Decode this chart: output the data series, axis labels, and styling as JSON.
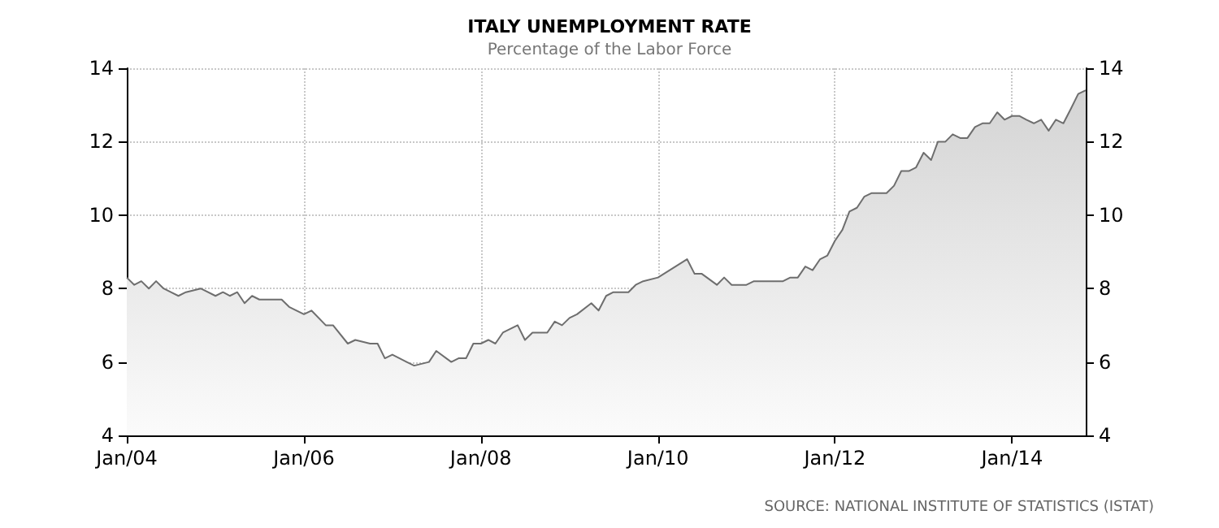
{
  "chart_data": {
    "type": "area",
    "title": "ITALY UNEMPLOYMENT RATE",
    "subtitle": "Percentage of the Labor Force",
    "annotations": [
      "SOURCE: NATIONAL INSTITUTE OF STATISTICS (ISTAT)"
    ],
    "x": [
      "2004-01",
      "2004-02",
      "2004-03",
      "2004-04",
      "2004-05",
      "2004-06",
      "2004-07",
      "2004-08",
      "2004-09",
      "2004-11",
      "2005-01",
      "2005-02",
      "2005-03",
      "2005-04",
      "2005-05",
      "2005-06",
      "2005-07",
      "2005-10",
      "2005-11",
      "2006-01",
      "2006-02",
      "2006-04",
      "2006-05",
      "2006-07",
      "2006-08",
      "2006-10",
      "2006-11",
      "2006-12",
      "2007-01",
      "2007-03",
      "2007-04",
      "2007-06",
      "2007-07",
      "2007-09",
      "2007-10",
      "2007-11",
      "2007-12",
      "2008-01",
      "2008-02",
      "2008-03",
      "2008-04",
      "2008-06",
      "2008-07",
      "2008-08",
      "2008-10",
      "2008-11",
      "2008-12",
      "2009-01",
      "2009-02",
      "2009-04",
      "2009-05",
      "2009-06",
      "2009-07",
      "2009-09",
      "2009-10",
      "2009-11",
      "2010-01",
      "2010-05",
      "2010-06",
      "2010-07",
      "2010-09",
      "2010-10",
      "2010-11",
      "2011-01",
      "2011-02",
      "2011-06",
      "2011-07",
      "2011-08",
      "2011-09",
      "2011-10",
      "2011-11",
      "2011-12",
      "2012-01",
      "2012-02",
      "2012-03",
      "2012-04",
      "2012-05",
      "2012-06",
      "2012-08",
      "2012-09",
      "2012-10",
      "2012-11",
      "2012-12",
      "2013-01",
      "2013-02",
      "2013-03",
      "2013-04",
      "2013-05",
      "2013-06",
      "2013-07",
      "2013-08",
      "2013-09",
      "2013-10",
      "2013-11",
      "2013-12",
      "2014-01",
      "2014-02",
      "2014-03",
      "2014-04",
      "2014-05",
      "2014-06",
      "2014-07",
      "2014-08",
      "2014-09",
      "2014-10",
      "2014-11"
    ],
    "series": [
      {
        "color": "#6e6e6e",
        "values": [
          8.3,
          8.1,
          8.2,
          8.0,
          8.2,
          8.0,
          7.9,
          7.8,
          7.9,
          8.0,
          7.8,
          7.9,
          7.8,
          7.9,
          7.6,
          7.8,
          7.7,
          7.7,
          7.5,
          7.3,
          7.4,
          7.0,
          7.0,
          6.5,
          6.6,
          6.5,
          6.5,
          6.1,
          6.2,
          6.0,
          5.9,
          6.0,
          6.3,
          6.0,
          6.1,
          6.1,
          6.5,
          6.5,
          6.6,
          6.5,
          6.8,
          7.0,
          6.6,
          6.8,
          6.8,
          7.1,
          7.0,
          7.2,
          7.3,
          7.6,
          7.4,
          7.8,
          7.9,
          7.9,
          8.1,
          8.2,
          8.3,
          8.8,
          8.4,
          8.4,
          8.1,
          8.3,
          8.1,
          8.1,
          8.2,
          8.2,
          8.3,
          8.3,
          8.6,
          8.5,
          8.8,
          8.9,
          9.3,
          9.6,
          10.1,
          10.2,
          10.5,
          10.6,
          10.6,
          10.8,
          11.2,
          11.2,
          11.3,
          11.7,
          11.5,
          12.0,
          12.0,
          12.2,
          12.1,
          12.1,
          12.4,
          12.5,
          12.5,
          12.8,
          12.6,
          12.7,
          12.7,
          12.6,
          12.5,
          12.6,
          12.3,
          12.6,
          12.5,
          12.9,
          13.3,
          13.4
        ]
      }
    ],
    "xlim": [
      "2004-01",
      "2014-11"
    ],
    "xticks": [
      {
        "value": "2004-01",
        "label": "Jan/04"
      },
      {
        "value": "2006-01",
        "label": "Jan/06"
      },
      {
        "value": "2008-01",
        "label": "Jan/08"
      },
      {
        "value": "2010-01",
        "label": "Jan/10"
      },
      {
        "value": "2012-01",
        "label": "Jan/12"
      },
      {
        "value": "2014-01",
        "label": "Jan/14"
      }
    ],
    "ylim": [
      4,
      14
    ],
    "yticks": [
      4,
      6,
      8,
      10,
      12,
      14
    ],
    "y2lim": [
      4,
      14
    ],
    "y2ticks": [
      4,
      6,
      8,
      10,
      12,
      14
    ],
    "grid": true
  }
}
